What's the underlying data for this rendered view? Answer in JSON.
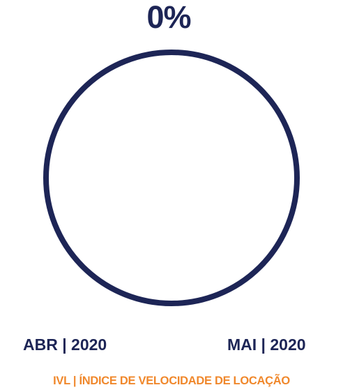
{
  "value_label": "0%",
  "period": {
    "from": "ABR | 2020",
    "to": "MAI | 2020"
  },
  "footer_title": "IVL | ÍNDICE DE VELOCIDADE DE LOCAÇÃO",
  "colors": {
    "ring": "#1d2556",
    "fill": "#f0882c",
    "text": "#1d2556",
    "footer": "#f0882c"
  },
  "chart_data": {
    "type": "pie",
    "title": "IVL | ÍNDICE DE VELOCIDADE DE LOCAÇÃO",
    "value_percent": 0,
    "value_label": "0%",
    "x_labels": [
      "ABR | 2020",
      "MAI | 2020"
    ]
  }
}
